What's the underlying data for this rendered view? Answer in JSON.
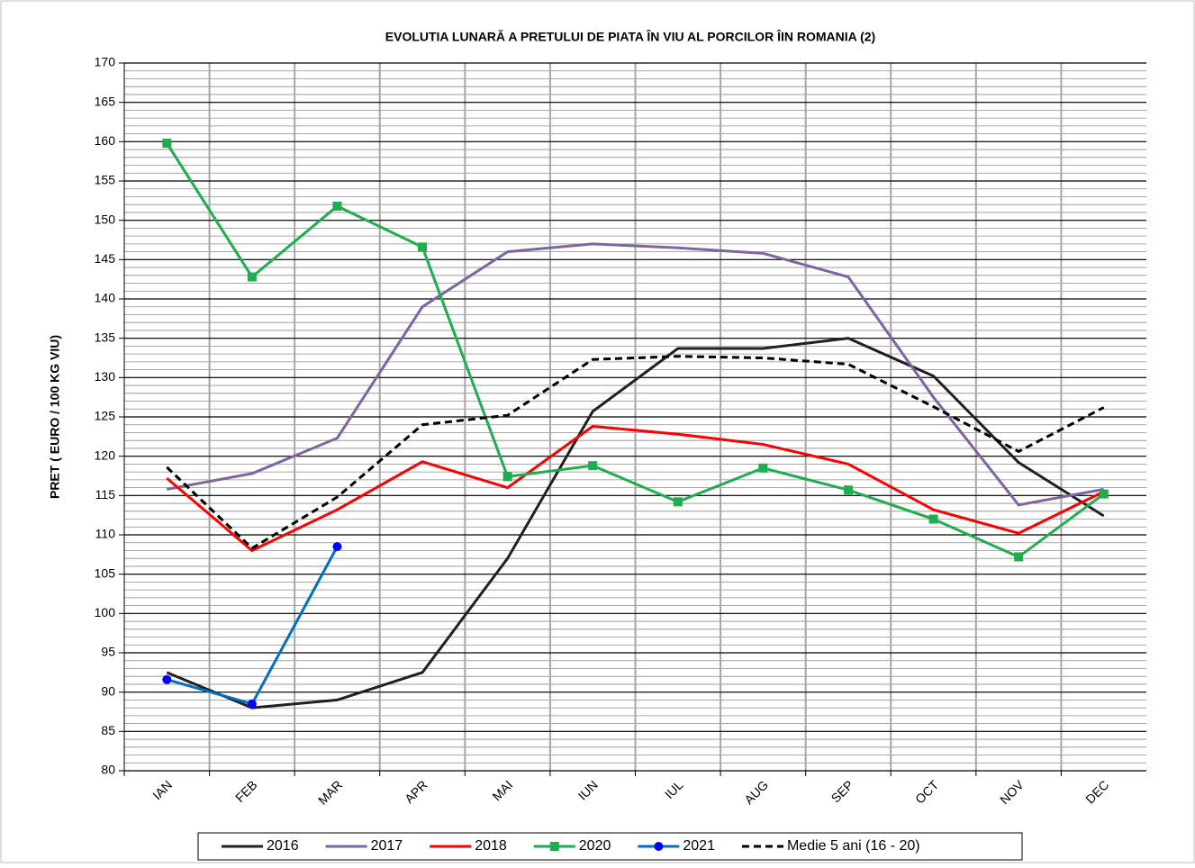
{
  "chart_data": {
    "type": "line",
    "title": "EVOLUTIA LUNARĂ A PRETULUI  DE PIATA ÎN VIU AL PORCILOR ÎIN ROMANIA (2)",
    "y_label": "PRET ( EURO / 100 KG VIU)",
    "categories": [
      "IAN",
      "FEB",
      "MAR",
      "APR",
      "MAI",
      "IUN",
      "IUL",
      "AUG",
      "SEP",
      "OCT",
      "NOV",
      "DEC"
    ],
    "ylim": [
      80,
      170
    ],
    "yticks": [
      80,
      85,
      90,
      95,
      100,
      105,
      110,
      115,
      120,
      125,
      130,
      135,
      140,
      145,
      150,
      155,
      160,
      165,
      170
    ],
    "grid": true,
    "legend": "bottom",
    "series": [
      {
        "name": "2016",
        "color": "#231f20",
        "values": [
          92.5,
          88,
          89,
          92.5,
          107,
          125.7,
          133.7,
          133.7,
          135,
          130.2,
          119.2,
          112.4
        ]
      },
      {
        "name": "2017",
        "color": "#8064a2",
        "values": [
          115.8,
          117.8,
          122.3,
          139,
          146,
          147,
          146.5,
          145.8,
          142.8,
          127.5,
          113.8,
          115.8
        ]
      },
      {
        "name": "2018",
        "color": "#ff0000",
        "values": [
          117.2,
          108,
          113.2,
          119.3,
          116,
          123.8,
          122.8,
          121.5,
          119,
          113.2,
          110.2,
          115.5
        ]
      },
      {
        "name": "2020",
        "color": "#1fae4e",
        "marker": "square",
        "values": [
          159.8,
          142.8,
          151.8,
          146.6,
          117.4,
          118.8,
          114.2,
          118.5,
          115.7,
          112,
          107.2,
          115.2
        ]
      },
      {
        "name": "2021",
        "color": "#0070c0",
        "marker": "circle",
        "marker_color": "#0000ff",
        "values": [
          91.6,
          88.5,
          108.5,
          null,
          null,
          null,
          null,
          null,
          null,
          null,
          null,
          null
        ]
      },
      {
        "name": "Medie 5 ani (16 - 20)",
        "color": "#000000",
        "dashed": true,
        "values": [
          118.6,
          108.3,
          114.8,
          124,
          125.2,
          132.3,
          132.7,
          132.5,
          131.7,
          126.3,
          120.6,
          126.2
        ]
      }
    ]
  }
}
